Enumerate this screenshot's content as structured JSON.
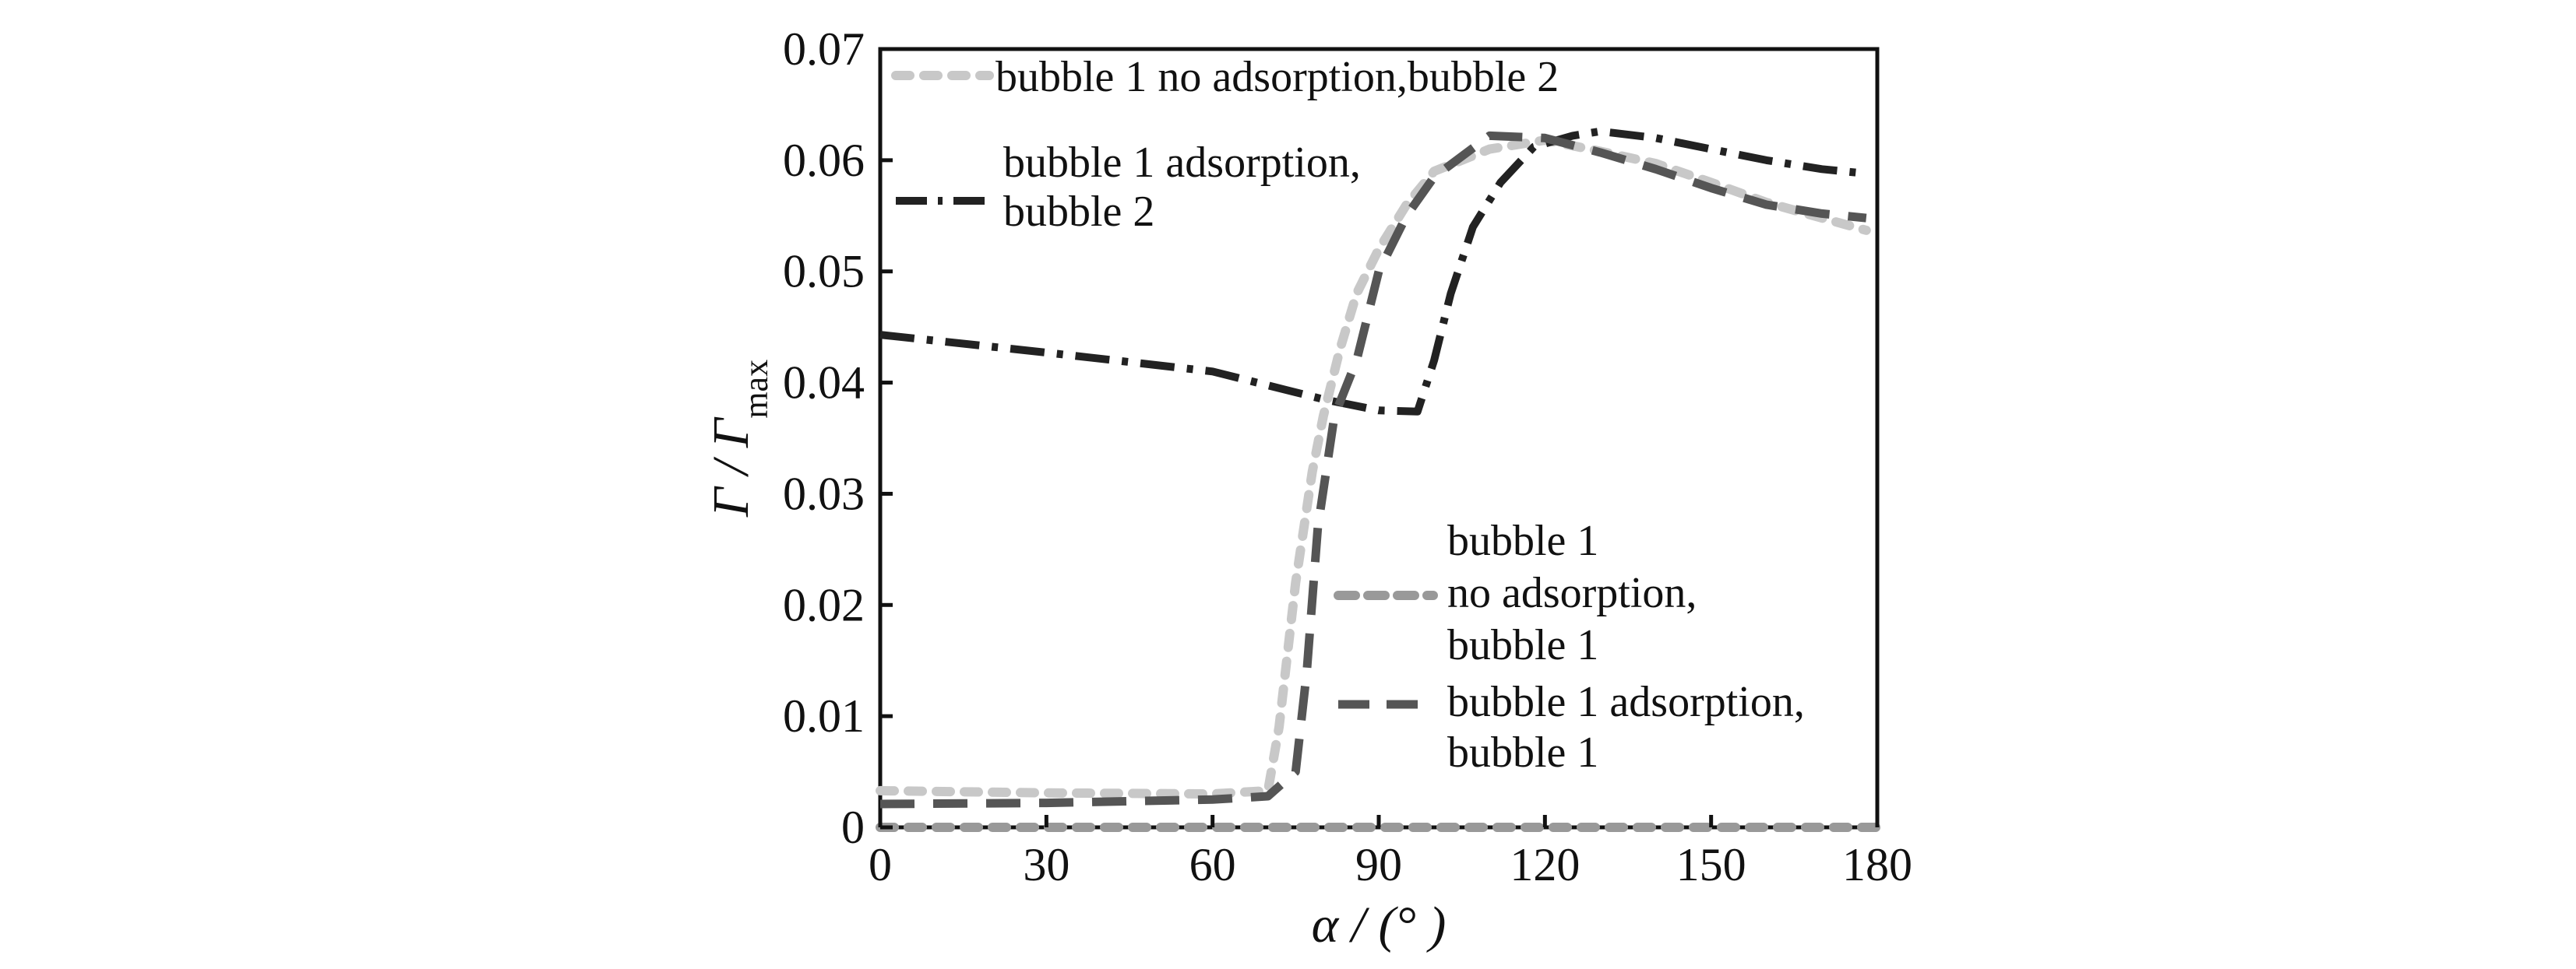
{
  "chart_data": {
    "type": "line",
    "title": "",
    "xlabel": "α / (° )",
    "ylabel_main": "Γ / Γ",
    "ylabel_sub": "max",
    "xlim": [
      0,
      180
    ],
    "ylim": [
      0,
      0.07
    ],
    "xticks": [
      0,
      30,
      60,
      90,
      120,
      150,
      180
    ],
    "yticks": [
      0,
      0.01,
      0.02,
      0.03,
      0.04,
      0.05,
      0.06,
      0.07
    ],
    "xtick_labels": [
      "0",
      "30",
      "60",
      "90",
      "120",
      "150",
      "180"
    ],
    "ytick_labels": [
      "0",
      "0.01",
      "0.02",
      "0.03",
      "0.04",
      "0.05",
      "0.06",
      "0.07"
    ],
    "grid": false,
    "series": [
      {
        "name": "bubble 1 no adsorption, bubble 2",
        "color": "#c8c8c8",
        "style": "dotted",
        "x": [
          0,
          30,
          60,
          70,
          72,
          75,
          78,
          80,
          83,
          86,
          90,
          95,
          100,
          110,
          120,
          130,
          140,
          150,
          160,
          170,
          178
        ],
        "y": [
          0.0033,
          0.0031,
          0.003,
          0.0033,
          0.009,
          0.022,
          0.032,
          0.037,
          0.043,
          0.048,
          0.052,
          0.056,
          0.059,
          0.061,
          0.0618,
          0.0608,
          0.0597,
          0.058,
          0.0562,
          0.0548,
          0.0537
        ]
      },
      {
        "name": "bubble 1 adsorption, bubble 2",
        "color": "#222222",
        "style": "dashdot",
        "x": [
          0,
          30,
          60,
          80,
          90,
          97,
          100,
          103,
          107,
          112,
          118,
          125,
          130,
          140,
          150,
          160,
          170,
          178
        ],
        "y": [
          0.0443,
          0.0427,
          0.041,
          0.0385,
          0.0375,
          0.0374,
          0.042,
          0.048,
          0.054,
          0.058,
          0.0612,
          0.0622,
          0.0626,
          0.062,
          0.061,
          0.06,
          0.0592,
          0.0588
        ]
      },
      {
        "name": "bubble 1 no adsorption, bubble 1",
        "color": "#999999",
        "style": "dotted",
        "x": [
          0,
          180
        ],
        "y": [
          0,
          0
        ]
      },
      {
        "name": "bubble 1 adsorption, bubble 1",
        "color": "#555555",
        "style": "dashed",
        "x": [
          0,
          30,
          60,
          70,
          75,
          77,
          79,
          82,
          86,
          90,
          95,
          100,
          110,
          120,
          130,
          140,
          150,
          160,
          170,
          178
        ],
        "y": [
          0.0021,
          0.0022,
          0.0025,
          0.0028,
          0.005,
          0.014,
          0.027,
          0.037,
          0.042,
          0.05,
          0.055,
          0.0585,
          0.0622,
          0.062,
          0.0607,
          0.0592,
          0.0575,
          0.056,
          0.0552,
          0.0548
        ]
      }
    ],
    "legends": [
      {
        "lines": [
          "bubble 1 no adsorption,bubble 2"
        ]
      },
      {
        "lines": [
          "bubble 1 adsorption,",
          "bubble 2"
        ]
      },
      {
        "lines": [
          "bubble 1",
          "no adsorption,",
          "bubble 1"
        ]
      },
      {
        "lines": [
          "bubble 1 adsorption,",
          "bubble 1"
        ]
      }
    ]
  }
}
